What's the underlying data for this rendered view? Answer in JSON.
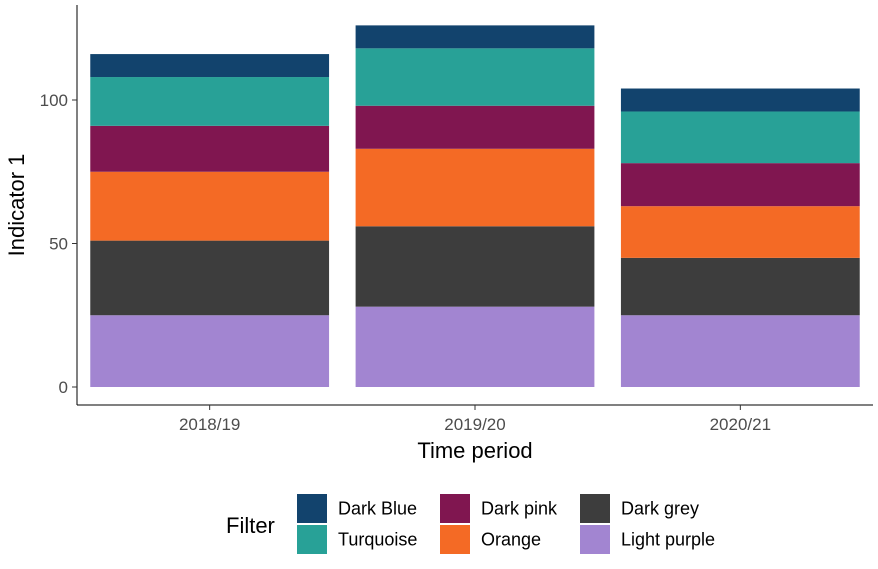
{
  "chart_data": {
    "type": "bar",
    "stacked": true,
    "title": "",
    "xlabel": "Time period",
    "ylabel": "Indicator 1",
    "categories": [
      "2018/19",
      "2019/20",
      "2020/21"
    ],
    "ylim": [
      0,
      125
    ],
    "yticks": [
      0,
      50,
      100
    ],
    "grid": false,
    "legend": {
      "title": "Filter",
      "position": "bottom"
    },
    "series": [
      {
        "name": "Light purple",
        "color": "#A285D1",
        "values": [
          25,
          28,
          25
        ]
      },
      {
        "name": "Dark grey",
        "color": "#3D3D3D",
        "values": [
          26,
          28,
          20
        ]
      },
      {
        "name": "Orange",
        "color": "#F46A25",
        "values": [
          24,
          27,
          18
        ]
      },
      {
        "name": "Dark pink",
        "color": "#801650",
        "values": [
          16,
          15,
          15
        ]
      },
      {
        "name": "Turquoise",
        "color": "#28A197",
        "values": [
          17,
          20,
          18
        ]
      },
      {
        "name": "Dark Blue",
        "color": "#12436D",
        "values": [
          8,
          8,
          8
        ]
      }
    ],
    "legend_order": [
      "Dark Blue",
      "Turquoise",
      "Dark pink",
      "Orange",
      "Dark grey",
      "Light purple"
    ]
  }
}
